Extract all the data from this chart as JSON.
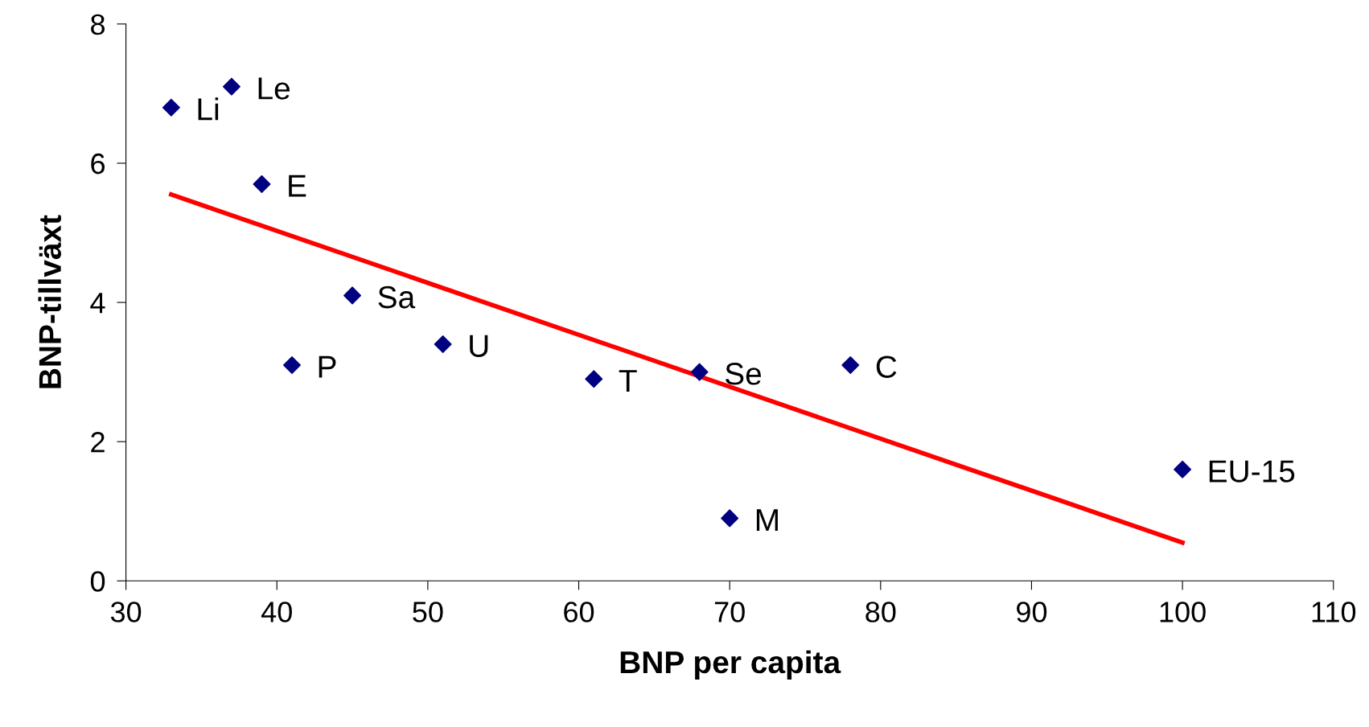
{
  "chart_data": {
    "type": "scatter",
    "xlabel": "BNP per capita",
    "ylabel": "BNP-tillväxt",
    "x": [
      33,
      37,
      39,
      41,
      45,
      51,
      61,
      68,
      70,
      78,
      100
    ],
    "series": [
      {
        "color": "#000080",
        "values": [
          6.8,
          7.1,
          5.7,
          3.1,
          4.1,
          3.4,
          2.9,
          3.0,
          0.9,
          3.1,
          1.6
        ],
        "marker": "diamond"
      },
      {
        "type": "line",
        "color": "#ff0000",
        "x": [
          33,
          100
        ],
        "values": [
          5.55,
          0.55
        ]
      }
    ],
    "annotations": [
      {
        "text": "Li",
        "x": 33,
        "y": 6.8
      },
      {
        "text": "Le",
        "x": 37,
        "y": 7.1
      },
      {
        "text": "E",
        "x": 39,
        "y": 5.7
      },
      {
        "text": "P",
        "x": 41,
        "y": 3.1
      },
      {
        "text": "Sa",
        "x": 45,
        "y": 4.1
      },
      {
        "text": "U",
        "x": 51,
        "y": 3.4
      },
      {
        "text": "T",
        "x": 61,
        "y": 2.9
      },
      {
        "text": "Se",
        "x": 68,
        "y": 3.0
      },
      {
        "text": "M",
        "x": 70,
        "y": 0.9
      },
      {
        "text": "C",
        "x": 78,
        "y": 3.1
      },
      {
        "text": "EU-15",
        "x": 100,
        "y": 1.6
      }
    ],
    "xlim": [
      30,
      110
    ],
    "xticks": [
      30,
      40,
      50,
      60,
      70,
      80,
      90,
      100,
      110
    ],
    "ylim": [
      0,
      8
    ],
    "yticks": [
      0,
      2,
      4,
      6,
      8
    ],
    "grid": false
  }
}
